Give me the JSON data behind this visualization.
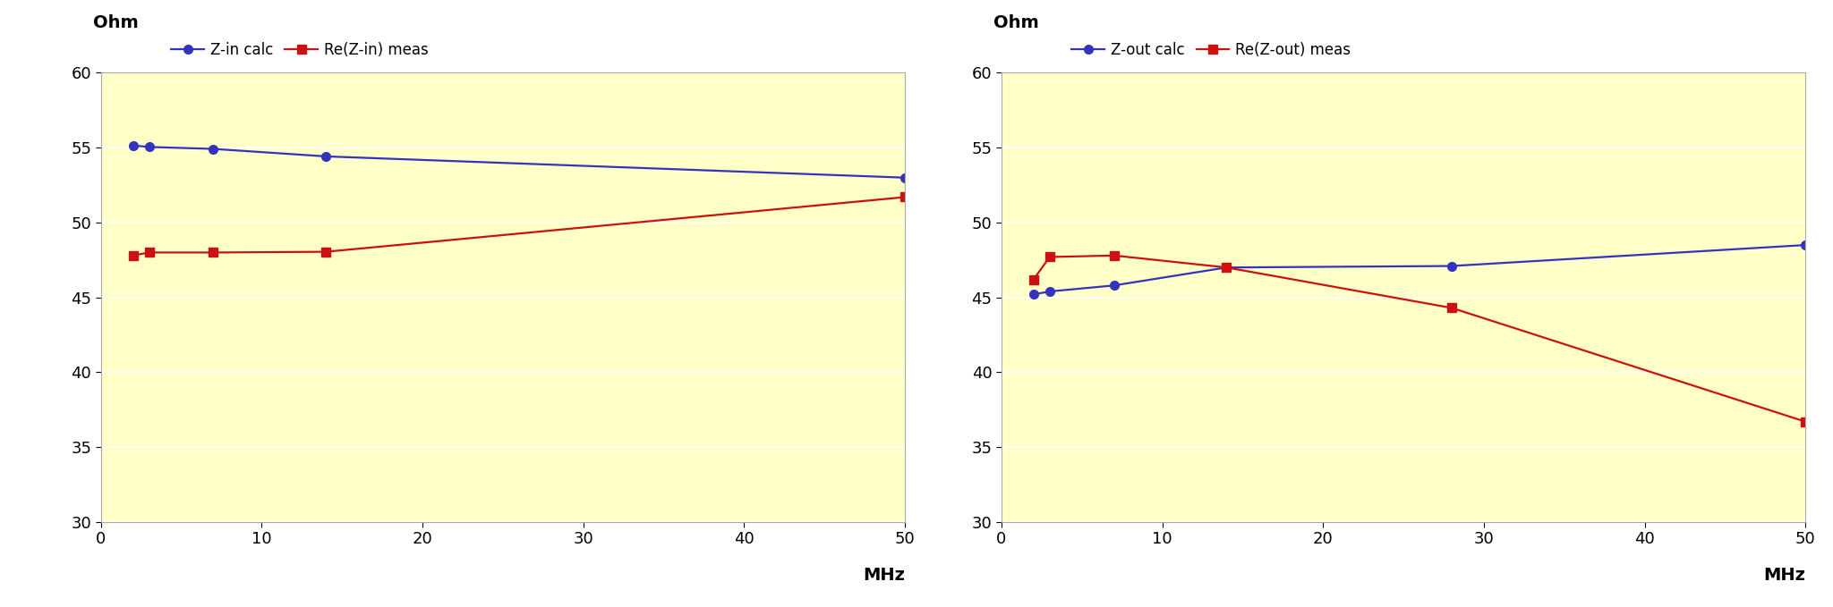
{
  "left": {
    "ylabel": "Ohm",
    "xlabel": "MHz",
    "ylim": [
      30,
      60
    ],
    "yticks": [
      30,
      35,
      40,
      45,
      50,
      55,
      60
    ],
    "xlim": [
      0,
      50
    ],
    "xticks": [
      0,
      10,
      20,
      30,
      40,
      50
    ],
    "plot_bg": "#ffffc8",
    "blue_label": "Z-in calc",
    "red_label": "Re(Z-in) meas",
    "blue_x": [
      2,
      3,
      7,
      14,
      50
    ],
    "blue_y": [
      55.15,
      55.05,
      54.92,
      54.42,
      53.0
    ],
    "red_x": [
      2,
      3,
      7,
      14,
      50
    ],
    "red_y": [
      47.8,
      48.0,
      48.0,
      48.05,
      51.7
    ]
  },
  "right": {
    "ylabel": "Ohm",
    "xlabel": "MHz",
    "ylim": [
      30,
      60
    ],
    "yticks": [
      30,
      35,
      40,
      45,
      50,
      55,
      60
    ],
    "xlim": [
      0,
      50
    ],
    "xticks": [
      0,
      10,
      20,
      30,
      40,
      50
    ],
    "plot_bg": "#ffffc8",
    "blue_label": "Z-out calc",
    "red_label": "Re(Z-out) meas",
    "blue_x": [
      2,
      3,
      7,
      14,
      28,
      50
    ],
    "blue_y": [
      45.2,
      45.4,
      45.8,
      47.0,
      47.1,
      48.5
    ],
    "red_x": [
      2,
      3,
      7,
      14,
      28,
      50
    ],
    "red_y": [
      46.2,
      47.7,
      47.8,
      47.0,
      44.3,
      36.7
    ]
  },
  "blue_color": "#3333bb",
  "red_color": "#cc1111",
  "outer_bg": "#ffffff",
  "grid_color": "#ffffff",
  "tick_fontsize": 13,
  "label_fontsize": 14,
  "legend_fontsize": 12
}
